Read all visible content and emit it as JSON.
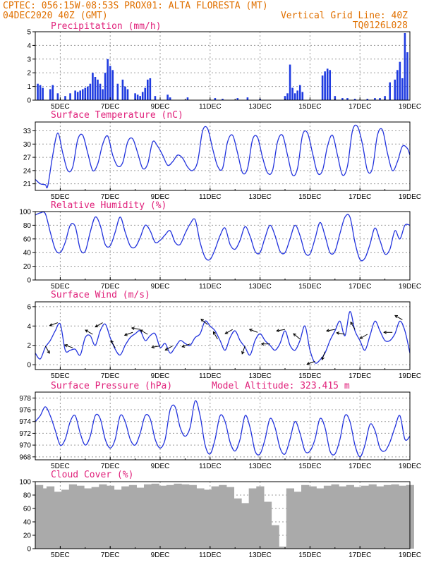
{
  "header": {
    "line1_left": "CPTEC:   056:15W-08:53S   PROX01: ALTA FLORESTA (MT)",
    "line2_left": "04DEC2020 40Z (GMT)",
    "line2_right": "Vertical Grid Line: 40Z",
    "line3_right": "TQ0126L028"
  },
  "colors": {
    "header": "#e07000",
    "title": "#e0207a",
    "line": "#2233dd",
    "bar": "#1f3be0",
    "cloud": "#aaaaaa",
    "grid": "#9a9a9a"
  },
  "chart_data": [
    {
      "type": "bar",
      "title": "Precipitation (mm/h)",
      "x_labels": [
        "5DEC",
        "7DEC",
        "9DEC",
        "11DEC",
        "13DEC",
        "15DEC",
        "17DEC",
        "19DEC"
      ],
      "x_range_days": [
        4.0,
        19.0
      ],
      "ylim": [
        0,
        5
      ],
      "yticks": [
        0,
        1,
        2,
        3,
        4,
        5
      ],
      "grid": true,
      "x": [
        4.1,
        4.2,
        4.3,
        4.6,
        4.7,
        4.9,
        5.2,
        5.4,
        5.6,
        5.7,
        5.8,
        5.9,
        6.0,
        6.1,
        6.2,
        6.3,
        6.4,
        6.5,
        6.6,
        6.7,
        6.8,
        6.9,
        7.0,
        7.1,
        7.3,
        7.5,
        7.6,
        7.7,
        8.0,
        8.1,
        8.2,
        8.3,
        8.4,
        8.5,
        8.6,
        8.8,
        9.3,
        9.4,
        10.1,
        11.2,
        11.5,
        12.1,
        12.5,
        13.0,
        14.0,
        14.1,
        14.2,
        14.3,
        14.4,
        14.5,
        14.6,
        14.7,
        15.5,
        15.6,
        15.7,
        15.8,
        16.0,
        16.3,
        16.5,
        16.8,
        17.3,
        17.6,
        17.8,
        18.0,
        18.2,
        18.4,
        18.5,
        18.6,
        18.7,
        18.8,
        18.9
      ],
      "values": [
        1.2,
        1.1,
        0.9,
        0.8,
        1.1,
        0.5,
        0.3,
        0.5,
        0.7,
        0.6,
        0.7,
        0.8,
        0.9,
        1.0,
        1.2,
        2.0,
        1.7,
        1.5,
        1.2,
        0.8,
        2.0,
        3.0,
        2.5,
        2.2,
        1.2,
        1.5,
        1.0,
        0.8,
        0.5,
        0.4,
        0.3,
        0.6,
        0.9,
        1.5,
        1.6,
        0.3,
        0.4,
        0.2,
        0.2,
        0.15,
        0.1,
        0.15,
        0.2,
        0.1,
        0.3,
        0.5,
        2.6,
        0.9,
        0.5,
        0.7,
        1.1,
        0.6,
        1.8,
        2.1,
        2.3,
        2.2,
        0.3,
        0.15,
        0.15,
        0.1,
        0.1,
        0.15,
        0.15,
        0.3,
        1.3,
        1.5,
        2.2,
        2.8,
        1.6,
        4.9,
        3.5
      ]
    },
    {
      "type": "line",
      "title": "Surface Temperature (nC)",
      "x_labels": [
        "5DEC",
        "7DEC",
        "9DEC",
        "11DEC",
        "13DEC",
        "15DEC",
        "17DEC",
        "19DEC"
      ],
      "x_range_days": [
        4.0,
        19.0
      ],
      "ylim": [
        19.5,
        35
      ],
      "yticks": [
        21,
        24,
        27,
        30,
        33
      ],
      "grid": true,
      "x": [
        4.0,
        4.2,
        4.4,
        4.5,
        4.7,
        4.9,
        5.1,
        5.3,
        5.5,
        5.7,
        5.9,
        6.1,
        6.3,
        6.5,
        6.7,
        6.9,
        7.1,
        7.3,
        7.5,
        7.7,
        7.9,
        8.1,
        8.3,
        8.5,
        8.7,
        8.9,
        9.1,
        9.3,
        9.5,
        9.7,
        9.9,
        10.1,
        10.3,
        10.5,
        10.7,
        10.9,
        11.1,
        11.3,
        11.5,
        11.7,
        11.9,
        12.1,
        12.3,
        12.5,
        12.7,
        12.9,
        13.1,
        13.3,
        13.5,
        13.7,
        13.9,
        14.1,
        14.3,
        14.5,
        14.7,
        14.9,
        15.1,
        15.3,
        15.5,
        15.7,
        15.9,
        16.1,
        16.3,
        16.5,
        16.7,
        16.9,
        17.1,
        17.3,
        17.5,
        17.7,
        17.9,
        18.1,
        18.3,
        18.5,
        18.7,
        18.9,
        19.0
      ],
      "values": [
        22.0,
        21.0,
        20.8,
        20.5,
        27.5,
        32.5,
        28.0,
        24.0,
        24.8,
        31.0,
        32.0,
        28.0,
        24.0,
        25.5,
        30.0,
        31.8,
        27.5,
        25.0,
        25.8,
        30.5,
        31.2,
        28.0,
        24.5,
        25.5,
        30.5,
        29.5,
        27.5,
        25.2,
        26.0,
        27.5,
        26.8,
        24.8,
        24.0,
        26.0,
        33.0,
        33.5,
        29.0,
        25.0,
        24.5,
        30.5,
        32.0,
        28.0,
        23.5,
        24.5,
        31.0,
        31.5,
        27.0,
        23.5,
        24.0,
        30.5,
        32.0,
        27.5,
        23.0,
        24.5,
        32.0,
        32.5,
        28.0,
        23.5,
        24.0,
        29.5,
        32.0,
        27.5,
        23.0,
        25.0,
        33.0,
        34.0,
        30.0,
        24.0,
        24.5,
        32.0,
        33.2,
        28.0,
        24.0,
        26.0,
        29.5,
        29.0,
        27.5
      ]
    },
    {
      "type": "line",
      "title": "Relative Humidity (%)",
      "x_labels": [
        "5DEC",
        "7DEC",
        "9DEC",
        "11DEC",
        "13DEC",
        "15DEC",
        "17DEC",
        "19DEC"
      ],
      "x_range_days": [
        4.0,
        19.0
      ],
      "ylim": [
        0,
        100
      ],
      "yticks": [
        0,
        20,
        40,
        60,
        80,
        100
      ],
      "grid": true,
      "x": [
        4.0,
        4.2,
        4.4,
        4.6,
        4.8,
        5.0,
        5.2,
        5.4,
        5.6,
        5.8,
        6.0,
        6.2,
        6.4,
        6.6,
        6.8,
        7.0,
        7.2,
        7.4,
        7.6,
        7.8,
        8.0,
        8.2,
        8.4,
        8.6,
        8.8,
        9.0,
        9.2,
        9.4,
        9.6,
        9.8,
        10.0,
        10.2,
        10.4,
        10.6,
        10.8,
        11.0,
        11.2,
        11.4,
        11.6,
        11.8,
        12.0,
        12.2,
        12.4,
        12.6,
        12.8,
        13.0,
        13.2,
        13.4,
        13.6,
        13.8,
        14.0,
        14.2,
        14.4,
        14.6,
        14.8,
        15.0,
        15.2,
        15.4,
        15.6,
        15.8,
        16.0,
        16.2,
        16.4,
        16.6,
        16.8,
        17.0,
        17.2,
        17.4,
        17.6,
        17.8,
        18.0,
        18.2,
        18.4,
        18.6,
        18.8,
        19.0
      ],
      "values": [
        95,
        98,
        97,
        70,
        45,
        40,
        55,
        80,
        78,
        45,
        42,
        70,
        92,
        80,
        52,
        50,
        70,
        92,
        70,
        50,
        48,
        62,
        80,
        72,
        55,
        58,
        66,
        72,
        55,
        52,
        68,
        82,
        88,
        55,
        33,
        30,
        45,
        65,
        76,
        52,
        45,
        58,
        78,
        64,
        42,
        40,
        62,
        80,
        65,
        42,
        40,
        60,
        80,
        65,
        40,
        38,
        60,
        84,
        65,
        40,
        42,
        68,
        92,
        92,
        55,
        30,
        32,
        52,
        76,
        58,
        38,
        45,
        72,
        60,
        80,
        80
      ]
    },
    {
      "type": "line",
      "title": "Surface Wind (m/s)",
      "x_labels": [
        "5DEC",
        "7DEC",
        "9DEC",
        "11DEC",
        "13DEC",
        "15DEC",
        "17DEC",
        "19DEC"
      ],
      "x_range_days": [
        4.0,
        19.0
      ],
      "ylim": [
        -0.5,
        6.5
      ],
      "yticks": [
        0,
        2,
        4,
        6
      ],
      "grid": true,
      "x": [
        4.0,
        4.2,
        4.4,
        4.6,
        4.8,
        5.0,
        5.2,
        5.4,
        5.6,
        5.8,
        6.0,
        6.2,
        6.4,
        6.6,
        6.8,
        7.0,
        7.2,
        7.4,
        7.6,
        7.8,
        8.0,
        8.2,
        8.4,
        8.6,
        8.8,
        9.0,
        9.2,
        9.4,
        9.6,
        9.8,
        10.0,
        10.2,
        10.4,
        10.6,
        10.8,
        11.0,
        11.2,
        11.4,
        11.6,
        11.8,
        12.0,
        12.2,
        12.4,
        12.6,
        12.8,
        13.0,
        13.2,
        13.4,
        13.6,
        13.8,
        14.0,
        14.2,
        14.4,
        14.6,
        14.8,
        15.0,
        15.2,
        15.4,
        15.6,
        15.8,
        16.0,
        16.2,
        16.4,
        16.6,
        16.8,
        17.0,
        17.2,
        17.4,
        17.6,
        17.8,
        18.0,
        18.2,
        18.4,
        18.6,
        18.8,
        19.0
      ],
      "values": [
        1.2,
        0.6,
        1.8,
        2.5,
        3.5,
        4.2,
        1.5,
        1.5,
        1.6,
        1.0,
        2.8,
        3.0,
        2.0,
        3.5,
        4.2,
        2.8,
        1.6,
        1.0,
        2.0,
        2.8,
        3.2,
        3.5,
        2.5,
        3.0,
        3.2,
        1.8,
        2.2,
        1.2,
        1.8,
        2.5,
        2.2,
        2.0,
        2.8,
        3.2,
        4.5,
        4.0,
        3.5,
        2.5,
        1.5,
        2.8,
        3.5,
        2.5,
        1.8,
        1.0,
        2.5,
        3.2,
        2.5,
        2.0,
        1.5,
        2.2,
        3.5,
        2.0,
        1.5,
        2.5,
        4.0,
        1.5,
        0.2,
        0.5,
        1.2,
        2.5,
        3.5,
        4.5,
        3.0,
        5.5,
        3.5,
        2.5,
        1.5,
        3.0,
        4.5,
        3.5,
        2.5,
        2.5,
        3.2,
        4.5,
        3.5,
        1.2
      ]
    },
    {
      "type": "line",
      "title": "Surface Pressure (hPa)",
      "annotation": "Model Altitude: 323.415 m",
      "x_labels": [
        "5DEC",
        "7DEC",
        "9DEC",
        "11DEC",
        "13DEC",
        "15DEC",
        "17DEC",
        "19DEC"
      ],
      "x_range_days": [
        4.0,
        19.0
      ],
      "ylim": [
        967.5,
        979
      ],
      "yticks": [
        968,
        970,
        972,
        974,
        976,
        978
      ],
      "grid": true,
      "x": [
        4.0,
        4.2,
        4.4,
        4.6,
        4.8,
        5.0,
        5.2,
        5.4,
        5.6,
        5.8,
        6.0,
        6.2,
        6.4,
        6.6,
        6.8,
        7.0,
        7.2,
        7.4,
        7.6,
        7.8,
        8.0,
        8.2,
        8.4,
        8.6,
        8.8,
        9.0,
        9.2,
        9.4,
        9.6,
        9.8,
        10.0,
        10.2,
        10.4,
        10.6,
        10.8,
        11.0,
        11.2,
        11.4,
        11.6,
        11.8,
        12.0,
        12.2,
        12.4,
        12.6,
        12.8,
        13.0,
        13.2,
        13.4,
        13.6,
        13.8,
        14.0,
        14.2,
        14.4,
        14.6,
        14.8,
        15.0,
        15.2,
        15.4,
        15.6,
        15.8,
        16.0,
        16.2,
        16.4,
        16.6,
        16.8,
        17.0,
        17.2,
        17.4,
        17.6,
        17.8,
        18.0,
        18.2,
        18.4,
        18.6,
        18.8,
        19.0
      ],
      "values": [
        974.0,
        975.0,
        976.5,
        975.0,
        972.5,
        970.0,
        971.0,
        974.0,
        975.0,
        972.0,
        970.0,
        971.5,
        975.0,
        974.5,
        971.0,
        969.5,
        971.0,
        975.0,
        974.0,
        971.0,
        970.0,
        972.0,
        975.0,
        974.5,
        971.0,
        969.5,
        971.0,
        976.0,
        976.5,
        973.0,
        971.5,
        973.0,
        977.5,
        975.0,
        970.0,
        968.5,
        971.0,
        975.0,
        974.0,
        970.5,
        969.0,
        971.0,
        975.0,
        973.0,
        969.0,
        968.5,
        971.0,
        974.5,
        973.0,
        969.5,
        968.5,
        971.0,
        974.0,
        972.0,
        969.0,
        969.0,
        971.0,
        974.5,
        973.0,
        969.0,
        968.5,
        971.0,
        975.0,
        974.0,
        970.0,
        968.0,
        970.0,
        973.5,
        972.5,
        969.5,
        969.0,
        970.5,
        973.0,
        975.0,
        971.0,
        971.5
      ]
    },
    {
      "type": "area",
      "title": "Cloud Cover (%)",
      "x_labels": [
        "5DEC",
        "7DEC",
        "9DEC",
        "11DEC",
        "13DEC",
        "15DEC",
        "17DEC",
        "19DEC"
      ],
      "x_range_days": [
        4.0,
        19.0
      ],
      "ylim": [
        0,
        100
      ],
      "yticks": [
        0,
        20,
        40,
        60,
        80,
        100
      ],
      "grid": true,
      "x": [
        4.0,
        4.3,
        4.6,
        4.9,
        5.2,
        5.5,
        5.8,
        6.1,
        6.4,
        6.7,
        7.0,
        7.3,
        7.6,
        7.9,
        8.2,
        8.5,
        8.8,
        9.1,
        9.4,
        9.7,
        10.0,
        10.3,
        10.6,
        10.9,
        11.2,
        11.5,
        11.8,
        12.1,
        12.4,
        12.7,
        13.0,
        13.3,
        13.6,
        13.9,
        14.2,
        14.5,
        14.8,
        15.1,
        15.4,
        15.7,
        16.0,
        16.3,
        16.6,
        16.9,
        17.2,
        17.5,
        17.8,
        18.1,
        18.4,
        18.7,
        19.0
      ],
      "values": [
        95,
        90,
        93,
        85,
        88,
        96,
        94,
        90,
        92,
        96,
        94,
        88,
        93,
        95,
        91,
        96,
        97,
        94,
        95,
        97,
        96,
        95,
        90,
        88,
        93,
        95,
        92,
        75,
        68,
        90,
        93,
        70,
        35,
        3,
        90,
        85,
        95,
        93,
        90,
        94,
        96,
        93,
        95,
        92,
        94,
        96,
        93,
        95,
        96,
        94,
        95
      ]
    }
  ]
}
